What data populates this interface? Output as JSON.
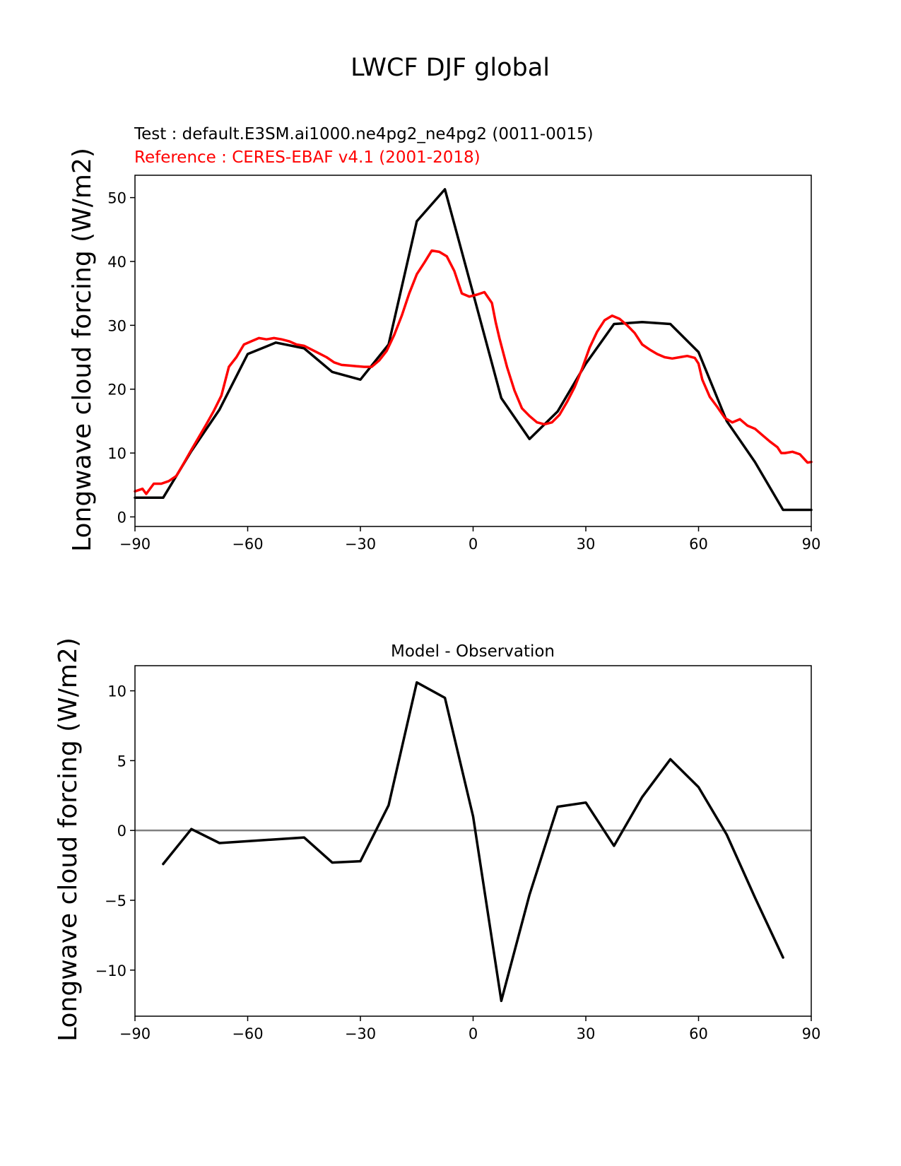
{
  "figure": {
    "title": "LWCF DJF global"
  },
  "chart_data": [
    {
      "type": "line",
      "test_label": "Test : default.E3SM.ai1000.ne4pg2_ne4pg2 (0011-0015)",
      "reference_label": "Reference : CERES-EBAF v4.1 (2001-2018)",
      "xlabel": "",
      "ylabel": "Longwave cloud forcing (W/m2)",
      "xlim": [
        -90,
        90
      ],
      "ylim": [
        -1.5,
        53.5
      ],
      "xticks": [
        -90,
        -60,
        -30,
        0,
        30,
        60,
        90
      ],
      "xtick_labels": [
        "−90",
        "−60",
        "−30",
        "0",
        "30",
        "60",
        "90"
      ],
      "yticks": [
        0,
        10,
        20,
        30,
        40,
        50
      ],
      "ytick_labels": [
        "0",
        "10",
        "20",
        "30",
        "40",
        "50"
      ],
      "colors": {
        "test": "#000000",
        "reference": "#ff0000"
      },
      "series": [
        {
          "role": "test",
          "x": [
            -90,
            -82.5,
            -75,
            -67.5,
            -60,
            -52.5,
            -45,
            -37.5,
            -30,
            -22.5,
            -15,
            -7.5,
            0,
            7.5,
            15,
            22.5,
            30,
            37.5,
            45,
            52.5,
            60,
            67.5,
            75,
            82.5,
            90
          ],
          "y": [
            3.0,
            3.0,
            10.3,
            16.8,
            25.5,
            27.3,
            26.4,
            22.7,
            21.5,
            27.0,
            46.3,
            51.3,
            35.0,
            18.6,
            12.2,
            16.5,
            24.0,
            30.2,
            30.5,
            30.2,
            25.8,
            15.0,
            8.6,
            1.1,
            1.1
          ]
        },
        {
          "role": "reference",
          "x": [
            -90,
            -88,
            -87,
            -85,
            -83,
            -81,
            -79,
            -77,
            -75,
            -73,
            -71,
            -69,
            -67,
            -65,
            -63,
            -61,
            -59,
            -57,
            -55,
            -53,
            -51,
            -49,
            -47,
            -45,
            -43,
            -41,
            -39,
            -37,
            -35,
            -33,
            -31,
            -29,
            -27,
            -25,
            -23,
            -21,
            -19,
            -17,
            -15,
            -13,
            -11,
            -9,
            -7,
            -5,
            -3,
            -1,
            1,
            3,
            5,
            6,
            7,
            9,
            11,
            13,
            15,
            17,
            19,
            21,
            23,
            25,
            27,
            29,
            31,
            33,
            35,
            37,
            39,
            41,
            43,
            45,
            47,
            49,
            51,
            53,
            55,
            57,
            59,
            60,
            61,
            63,
            65,
            67,
            69,
            71,
            73,
            75,
            77,
            79,
            81,
            82,
            83,
            85,
            87,
            89,
            90
          ],
          "y": [
            4.0,
            4.4,
            3.6,
            5.2,
            5.2,
            5.6,
            6.4,
            8.4,
            10.5,
            12.5,
            14.5,
            16.6,
            19.0,
            23.5,
            25.0,
            27.0,
            27.5,
            28.0,
            27.8,
            28.0,
            27.8,
            27.5,
            27.0,
            26.8,
            26.2,
            25.6,
            25.0,
            24.2,
            23.8,
            23.7,
            23.6,
            23.5,
            23.5,
            24.5,
            26.0,
            28.5,
            31.5,
            35.0,
            38.0,
            39.8,
            41.7,
            41.5,
            40.8,
            38.5,
            35.0,
            34.5,
            34.8,
            35.2,
            33.5,
            30.5,
            28.0,
            23.5,
            19.8,
            17.0,
            15.8,
            14.8,
            14.5,
            14.8,
            16.0,
            18.0,
            20.3,
            23.2,
            26.5,
            29.0,
            30.8,
            31.5,
            31.0,
            30.0,
            28.8,
            27.0,
            26.2,
            25.5,
            25.0,
            24.8,
            25.0,
            25.2,
            24.9,
            24.0,
            21.5,
            18.8,
            17.2,
            15.5,
            14.8,
            15.3,
            14.3,
            13.8,
            12.8,
            11.8,
            10.9,
            10.0,
            10.0,
            10.2,
            9.8,
            8.5,
            8.6
          ]
        }
      ]
    },
    {
      "type": "line",
      "title": "Model - Observation",
      "xlabel": "",
      "ylabel": "Longwave cloud forcing (W/m2)",
      "xlim": [
        -90,
        90
      ],
      "ylim": [
        -13.3,
        11.8
      ],
      "xticks": [
        -90,
        -60,
        -30,
        0,
        30,
        60,
        90
      ],
      "xtick_labels": [
        "−90",
        "−60",
        "−30",
        "0",
        "30",
        "60",
        "90"
      ],
      "yticks": [
        -10,
        -5,
        0,
        5,
        10
      ],
      "ytick_labels": [
        "−10",
        "−5",
        "0",
        "5",
        "10"
      ],
      "zero_line": true,
      "colors": {
        "diff": "#000000",
        "zero": "#808080"
      },
      "series": [
        {
          "role": "difference",
          "x": [
            -82.5,
            -75,
            -67.5,
            -45,
            -37.5,
            -30,
            -22.5,
            -15,
            -7.5,
            0,
            7.5,
            15,
            22.5,
            30,
            37.5,
            45,
            52.5,
            60,
            67.5,
            75,
            82.5
          ],
          "y": [
            -2.4,
            0.1,
            -0.9,
            -0.5,
            -2.3,
            -2.2,
            1.8,
            10.6,
            9.5,
            1.0,
            -12.2,
            -4.6,
            1.7,
            2.0,
            -1.1,
            2.4,
            5.1,
            3.1,
            -0.3,
            -4.8,
            -9.1
          ]
        }
      ]
    }
  ]
}
